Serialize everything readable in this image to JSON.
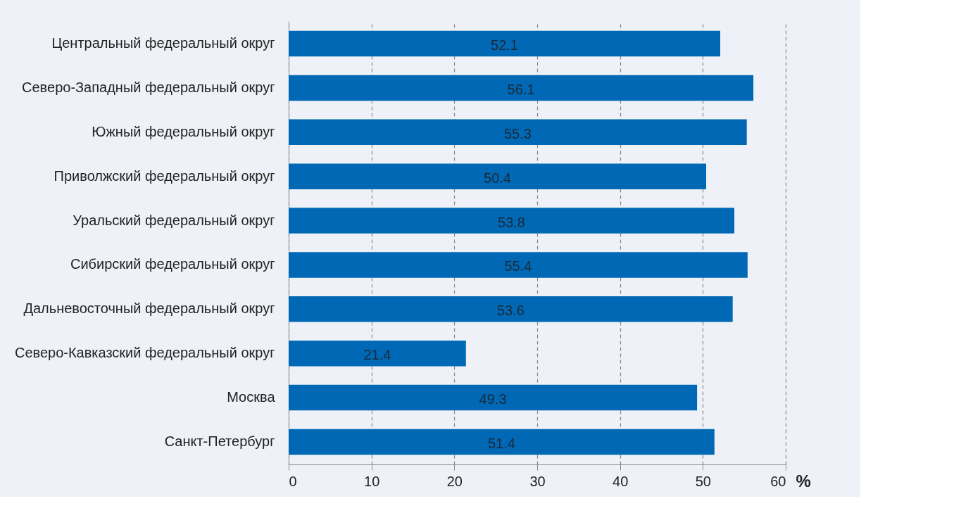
{
  "chart_data": {
    "type": "bar",
    "orientation": "horizontal",
    "categories": [
      "Центральный федеральный округ",
      "Северо-Западный федеральный округ",
      "Южный федеральный округ",
      "Приволжский федеральный округ",
      "Уральский федеральный округ",
      "Сибирский федеральный округ",
      "Дальневосточный федеральный округ",
      "Северо-Кавказский федеральный округ",
      "Москва",
      "Санкт-Петербург"
    ],
    "values": [
      52.1,
      56.1,
      55.3,
      50.4,
      53.8,
      55.4,
      53.6,
      21.4,
      49.3,
      51.4
    ],
    "color": "#0068b4",
    "xlabel": "%",
    "xlim": [
      0,
      60
    ],
    "xticks": [
      0,
      10,
      20,
      30,
      40,
      50,
      60
    ],
    "grid": "x",
    "data_labels": true
  }
}
